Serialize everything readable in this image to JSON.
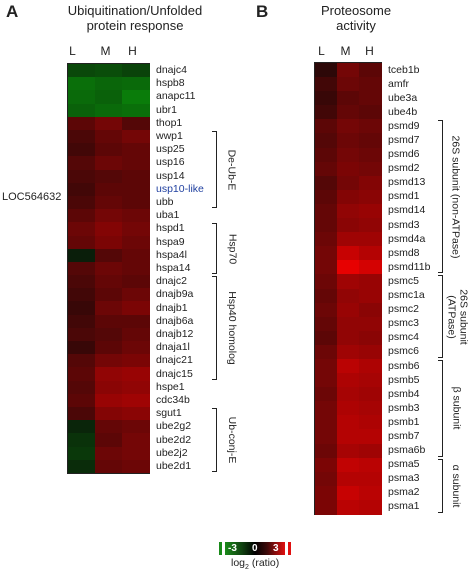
{
  "panel_a": {
    "letter": "A",
    "title_line1": "Ubiquitination/Unfolded",
    "title_line2": "protein response",
    "columns": [
      "L",
      "M",
      "H"
    ],
    "side_label": "LOC564632",
    "genes": [
      "dnajc4",
      "hspb8",
      "anapc11",
      "ubr1",
      "thop1",
      "wwp1",
      "usp25",
      "usp16",
      "usp14",
      "usp10-like",
      "ubb",
      "uba1",
      "hspd1",
      "hspa9",
      "hspa4l",
      "hspa14",
      "dnajc2",
      "dnajb9a",
      "dnajb1",
      "dnajb6a",
      "dnajb12",
      "dnaja1l",
      "dnajc21",
      "dnajc15",
      "hspe1",
      "cdc34b",
      "sgut1",
      "ube2g2",
      "ube2d2",
      "ube2j2",
      "ube2d1"
    ],
    "groups": [
      {
        "label": "De-Ub-E",
        "start": 5,
        "end": 10
      },
      {
        "label": "Hsp70",
        "start": 12,
        "end": 15
      },
      {
        "label": "Hsp40 homolog",
        "start": 16,
        "end": 23
      },
      {
        "label": "Ub-conj-E",
        "start": 26,
        "end": 30
      }
    ],
    "values": [
      [
        -0.8,
        -0.9,
        -0.7
      ],
      [
        -1.6,
        -1.4,
        -1.5
      ],
      [
        -1.5,
        -1.3,
        -1.9
      ],
      [
        -1.3,
        -1.5,
        -1.6
      ],
      [
        0.6,
        0.9,
        0.5
      ],
      [
        0.4,
        0.7,
        0.9
      ],
      [
        0.3,
        0.6,
        0.7
      ],
      [
        0.5,
        0.8,
        0.7
      ],
      [
        0.4,
        0.5,
        0.6
      ],
      [
        0.3,
        0.6,
        0.6
      ],
      [
        0.4,
        0.7,
        0.6
      ],
      [
        0.6,
        0.9,
        0.8
      ],
      [
        0.8,
        1.1,
        0.9
      ],
      [
        0.7,
        1.0,
        0.8
      ],
      [
        -0.1,
        0.5,
        0.7
      ],
      [
        0.5,
        0.8,
        0.7
      ],
      [
        0.4,
        0.7,
        0.6
      ],
      [
        0.3,
        0.6,
        0.8
      ],
      [
        0.2,
        0.8,
        1.0
      ],
      [
        0.3,
        0.6,
        0.6
      ],
      [
        0.4,
        0.5,
        0.7
      ],
      [
        0.2,
        0.6,
        0.8
      ],
      [
        0.5,
        0.9,
        1.0
      ],
      [
        0.6,
        1.3,
        1.4
      ],
      [
        0.5,
        1.2,
        1.3
      ],
      [
        0.6,
        1.4,
        1.5
      ],
      [
        0.4,
        1.1,
        1.2
      ],
      [
        -0.2,
        0.7,
        0.8
      ],
      [
        -0.4,
        0.6,
        0.9
      ],
      [
        -0.5,
        0.8,
        0.9
      ],
      [
        -0.3,
        0.7,
        0.8
      ]
    ]
  },
  "panel_b": {
    "letter": "B",
    "title_line1": "Proteosome",
    "title_line2": "activity",
    "columns": [
      "L",
      "M",
      "H"
    ],
    "genes": [
      "tceb1b",
      "amfr",
      "ube3a",
      "ube4b",
      "psmd9",
      "psmd7",
      "psmd6",
      "psmd2",
      "psmd13",
      "psmd1",
      "psmd14",
      "psmd3",
      "psmd4a",
      "psmd8",
      "psmd11b",
      "psmc5",
      "psmc1a",
      "psmc2",
      "psmc3",
      "psmc4",
      "psmc6",
      "psmb6",
      "psmb5",
      "psmb4",
      "psmb3",
      "psmb1",
      "psmb7",
      "psma6b",
      "psma5",
      "psma3",
      "psma2",
      "psma1"
    ],
    "groups": [
      {
        "label": "26S subunit (non-ATPase)",
        "start": 4,
        "end": 14
      },
      {
        "label": "26S subunit (ATPase)",
        "start": 15,
        "end": 20
      },
      {
        "label": "β subunit",
        "start": 21,
        "end": 27
      },
      {
        "label": "α subunit",
        "start": 28,
        "end": 31
      }
    ],
    "values": [
      [
        0.1,
        0.9,
        0.6
      ],
      [
        0.3,
        0.8,
        0.7
      ],
      [
        0.2,
        0.6,
        0.7
      ],
      [
        0.3,
        0.7,
        0.6
      ],
      [
        0.6,
        0.9,
        0.8
      ],
      [
        0.5,
        0.8,
        0.7
      ],
      [
        0.6,
        0.9,
        0.8
      ],
      [
        0.7,
        1.0,
        0.9
      ],
      [
        0.5,
        0.9,
        1.1
      ],
      [
        0.6,
        1.1,
        1.2
      ],
      [
        0.7,
        1.3,
        1.4
      ],
      [
        0.7,
        1.2,
        1.3
      ],
      [
        0.8,
        1.5,
        1.5
      ],
      [
        0.9,
        2.1,
        1.8
      ],
      [
        0.9,
        2.6,
        2.3
      ],
      [
        0.8,
        1.5,
        1.4
      ],
      [
        0.7,
        1.3,
        1.4
      ],
      [
        0.8,
        1.4,
        1.2
      ],
      [
        0.7,
        1.3,
        1.3
      ],
      [
        0.6,
        1.3,
        1.2
      ],
      [
        0.8,
        1.5,
        1.4
      ],
      [
        0.9,
        1.9,
        1.7
      ],
      [
        0.9,
        1.7,
        1.6
      ],
      [
        0.8,
        1.6,
        1.5
      ],
      [
        0.9,
        1.7,
        1.6
      ],
      [
        0.9,
        1.8,
        1.7
      ],
      [
        0.9,
        1.8,
        1.8
      ],
      [
        0.8,
        1.6,
        1.5
      ],
      [
        1.0,
        2.0,
        1.9
      ],
      [
        0.9,
        1.8,
        1.8
      ],
      [
        1.0,
        2.1,
        1.9
      ],
      [
        1.0,
        1.9,
        1.8
      ]
    ]
  },
  "scale": {
    "min_label": "-3",
    "mid_label": "0",
    "max_label": "3",
    "caption": "log2 (ratio)",
    "colors": {
      "low": "#1a8a1a",
      "mid": "#000000",
      "high": "#e01010"
    }
  }
}
